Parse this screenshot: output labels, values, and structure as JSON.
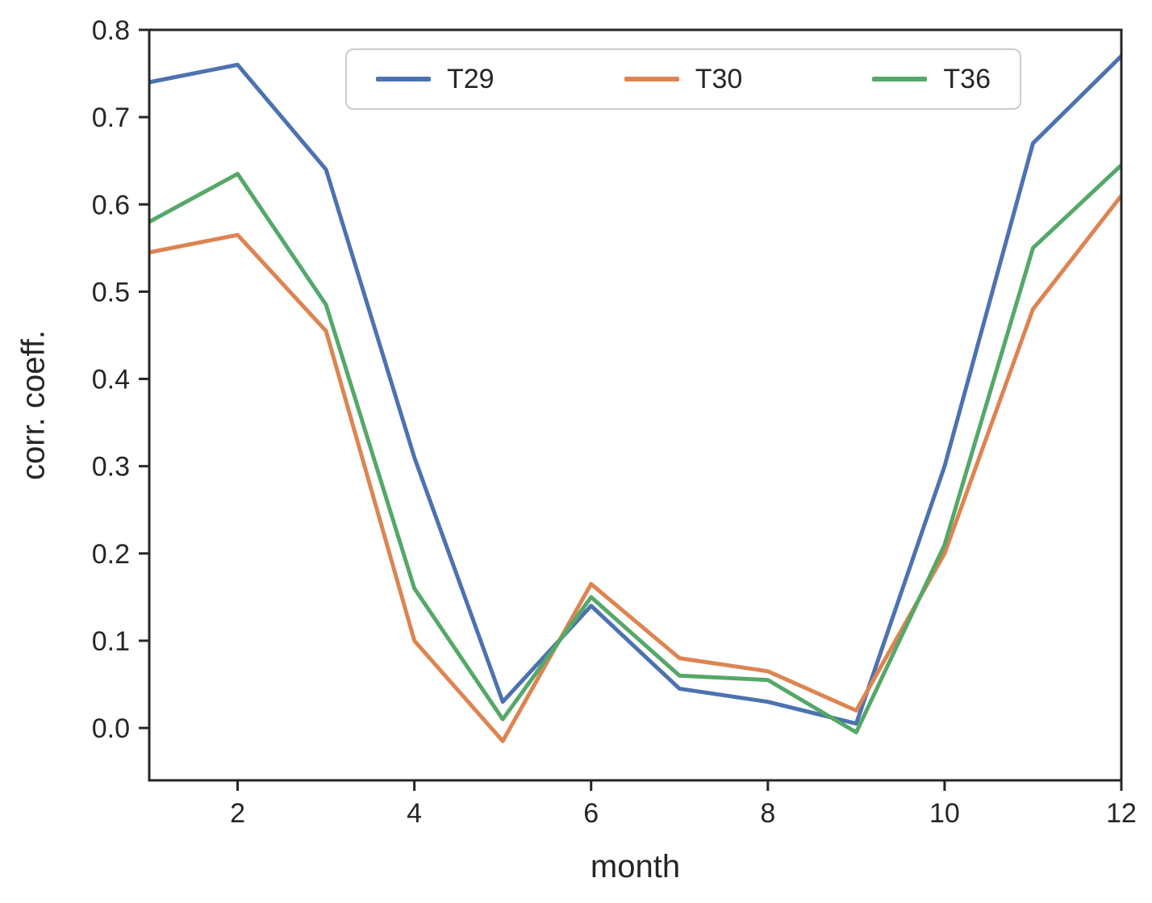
{
  "chart_data": {
    "type": "line",
    "title": "",
    "xlabel": "month",
    "ylabel": "corr. coeff.",
    "grid": false,
    "legend_position": "upper center",
    "x": [
      1,
      2,
      3,
      4,
      5,
      6,
      7,
      8,
      9,
      10,
      11,
      12
    ],
    "xlim": [
      1,
      12
    ],
    "ylim": [
      -0.06,
      0.8
    ],
    "xticks": [
      2,
      4,
      6,
      8,
      10,
      12
    ],
    "yticks": [
      0.0,
      0.1,
      0.2,
      0.3,
      0.4,
      0.5,
      0.6,
      0.7,
      0.8
    ],
    "axis_color": "#262626",
    "series": [
      {
        "name": "T29",
        "color": "#4C72B0",
        "values": [
          0.74,
          0.76,
          0.64,
          0.31,
          0.03,
          0.14,
          0.045,
          0.03,
          0.005,
          0.3,
          0.67,
          0.77
        ]
      },
      {
        "name": "T30",
        "color": "#DD8452",
        "values": [
          0.545,
          0.565,
          0.455,
          0.1,
          -0.015,
          0.165,
          0.08,
          0.065,
          0.02,
          0.2,
          0.48,
          0.61
        ]
      },
      {
        "name": "T36",
        "color": "#55A868",
        "values": [
          0.58,
          0.635,
          0.485,
          0.16,
          0.01,
          0.15,
          0.06,
          0.055,
          -0.005,
          0.21,
          0.55,
          0.645
        ]
      }
    ]
  }
}
